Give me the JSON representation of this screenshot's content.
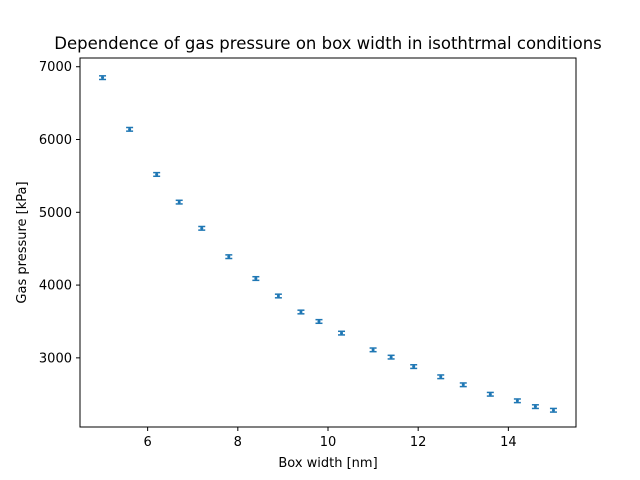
{
  "chart_data": {
    "type": "scatter",
    "title": "Dependence of gas pressure on box width in isothtrmal conditions",
    "xlabel": "Box width [nm]",
    "ylabel": "Gas pressure [kPa]",
    "xlim": [
      4.5,
      15.5
    ],
    "ylim": [
      2050,
      7120
    ],
    "xticks": [
      6,
      8,
      10,
      12,
      14
    ],
    "yticks": [
      3000,
      4000,
      5000,
      6000,
      7000
    ],
    "grid": false,
    "error_bars": true,
    "marker_color": "#1f77b4",
    "series": [
      {
        "x": [
          5.0,
          5.6,
          6.2,
          6.7,
          7.2,
          7.8,
          8.4,
          8.9,
          9.4,
          9.8,
          10.3,
          11.0,
          11.4,
          11.9,
          12.5,
          13.0,
          13.6,
          14.2,
          14.6,
          15.0
        ],
        "y": [
          6850,
          6140,
          5520,
          5140,
          4780,
          4390,
          4090,
          3850,
          3630,
          3500,
          3340,
          3110,
          3010,
          2880,
          2740,
          2630,
          2500,
          2410,
          2330,
          2280
        ],
        "yerr": [
          25,
          25,
          25,
          25,
          25,
          25,
          25,
          25,
          25,
          25,
          25,
          25,
          25,
          25,
          25,
          25,
          25,
          25,
          25,
          25
        ]
      }
    ]
  }
}
